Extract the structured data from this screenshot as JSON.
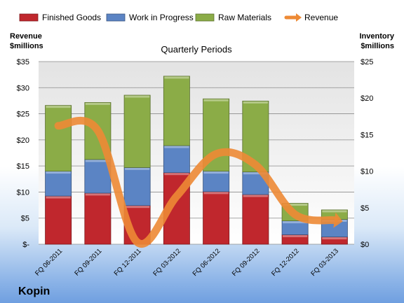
{
  "chart_data": {
    "type": "bar",
    "title": "Quarterly Periods",
    "company": "Kopin",
    "left_axis_label": [
      "Revenue",
      "$millions"
    ],
    "right_axis_label": [
      "Inventory",
      "$millions"
    ],
    "left_axis_range": [
      0,
      35
    ],
    "left_ticks": [
      "$-",
      "$5",
      "$10",
      "$15",
      "$20",
      "$25",
      "$30",
      "$35"
    ],
    "right_axis_range": [
      0,
      25
    ],
    "right_ticks": [
      "$0",
      "$5",
      "$10",
      "$15",
      "$20",
      "$25"
    ],
    "legend_position": "top",
    "grid": true,
    "categories": [
      "FQ 06-2011",
      "FQ 09-2011",
      "FQ 12-2011",
      "FQ 03-2012",
      "FQ 06-2012",
      "FQ 09-2012",
      "FQ 12-2012",
      "FQ 03-2013"
    ],
    "series": [
      {
        "name": "Finished Goods",
        "type": "stacked-bar",
        "axis": "right",
        "color": "#c0272d",
        "values": [
          6.6,
          7.0,
          5.3,
          9.8,
          7.2,
          6.8,
          1.3,
          1.0
        ]
      },
      {
        "name": "Work in Progress",
        "type": "stacked-bar",
        "axis": "right",
        "color": "#5b84c4",
        "values": [
          3.4,
          4.6,
          5.2,
          3.7,
          2.8,
          3.1,
          1.9,
          2.4
        ]
      },
      {
        "name": "Raw Materials",
        "type": "stacked-bar",
        "axis": "right",
        "color": "#8bac47",
        "values": [
          9.0,
          7.8,
          9.9,
          9.5,
          9.9,
          9.7,
          2.4,
          1.3
        ]
      },
      {
        "name": "Revenue",
        "type": "line",
        "axis": "left",
        "color": "#ed8a35",
        "values": [
          22.7,
          21.8,
          0.4,
          9.2,
          17.3,
          15.2,
          5.7,
          4.6
        ]
      }
    ]
  }
}
